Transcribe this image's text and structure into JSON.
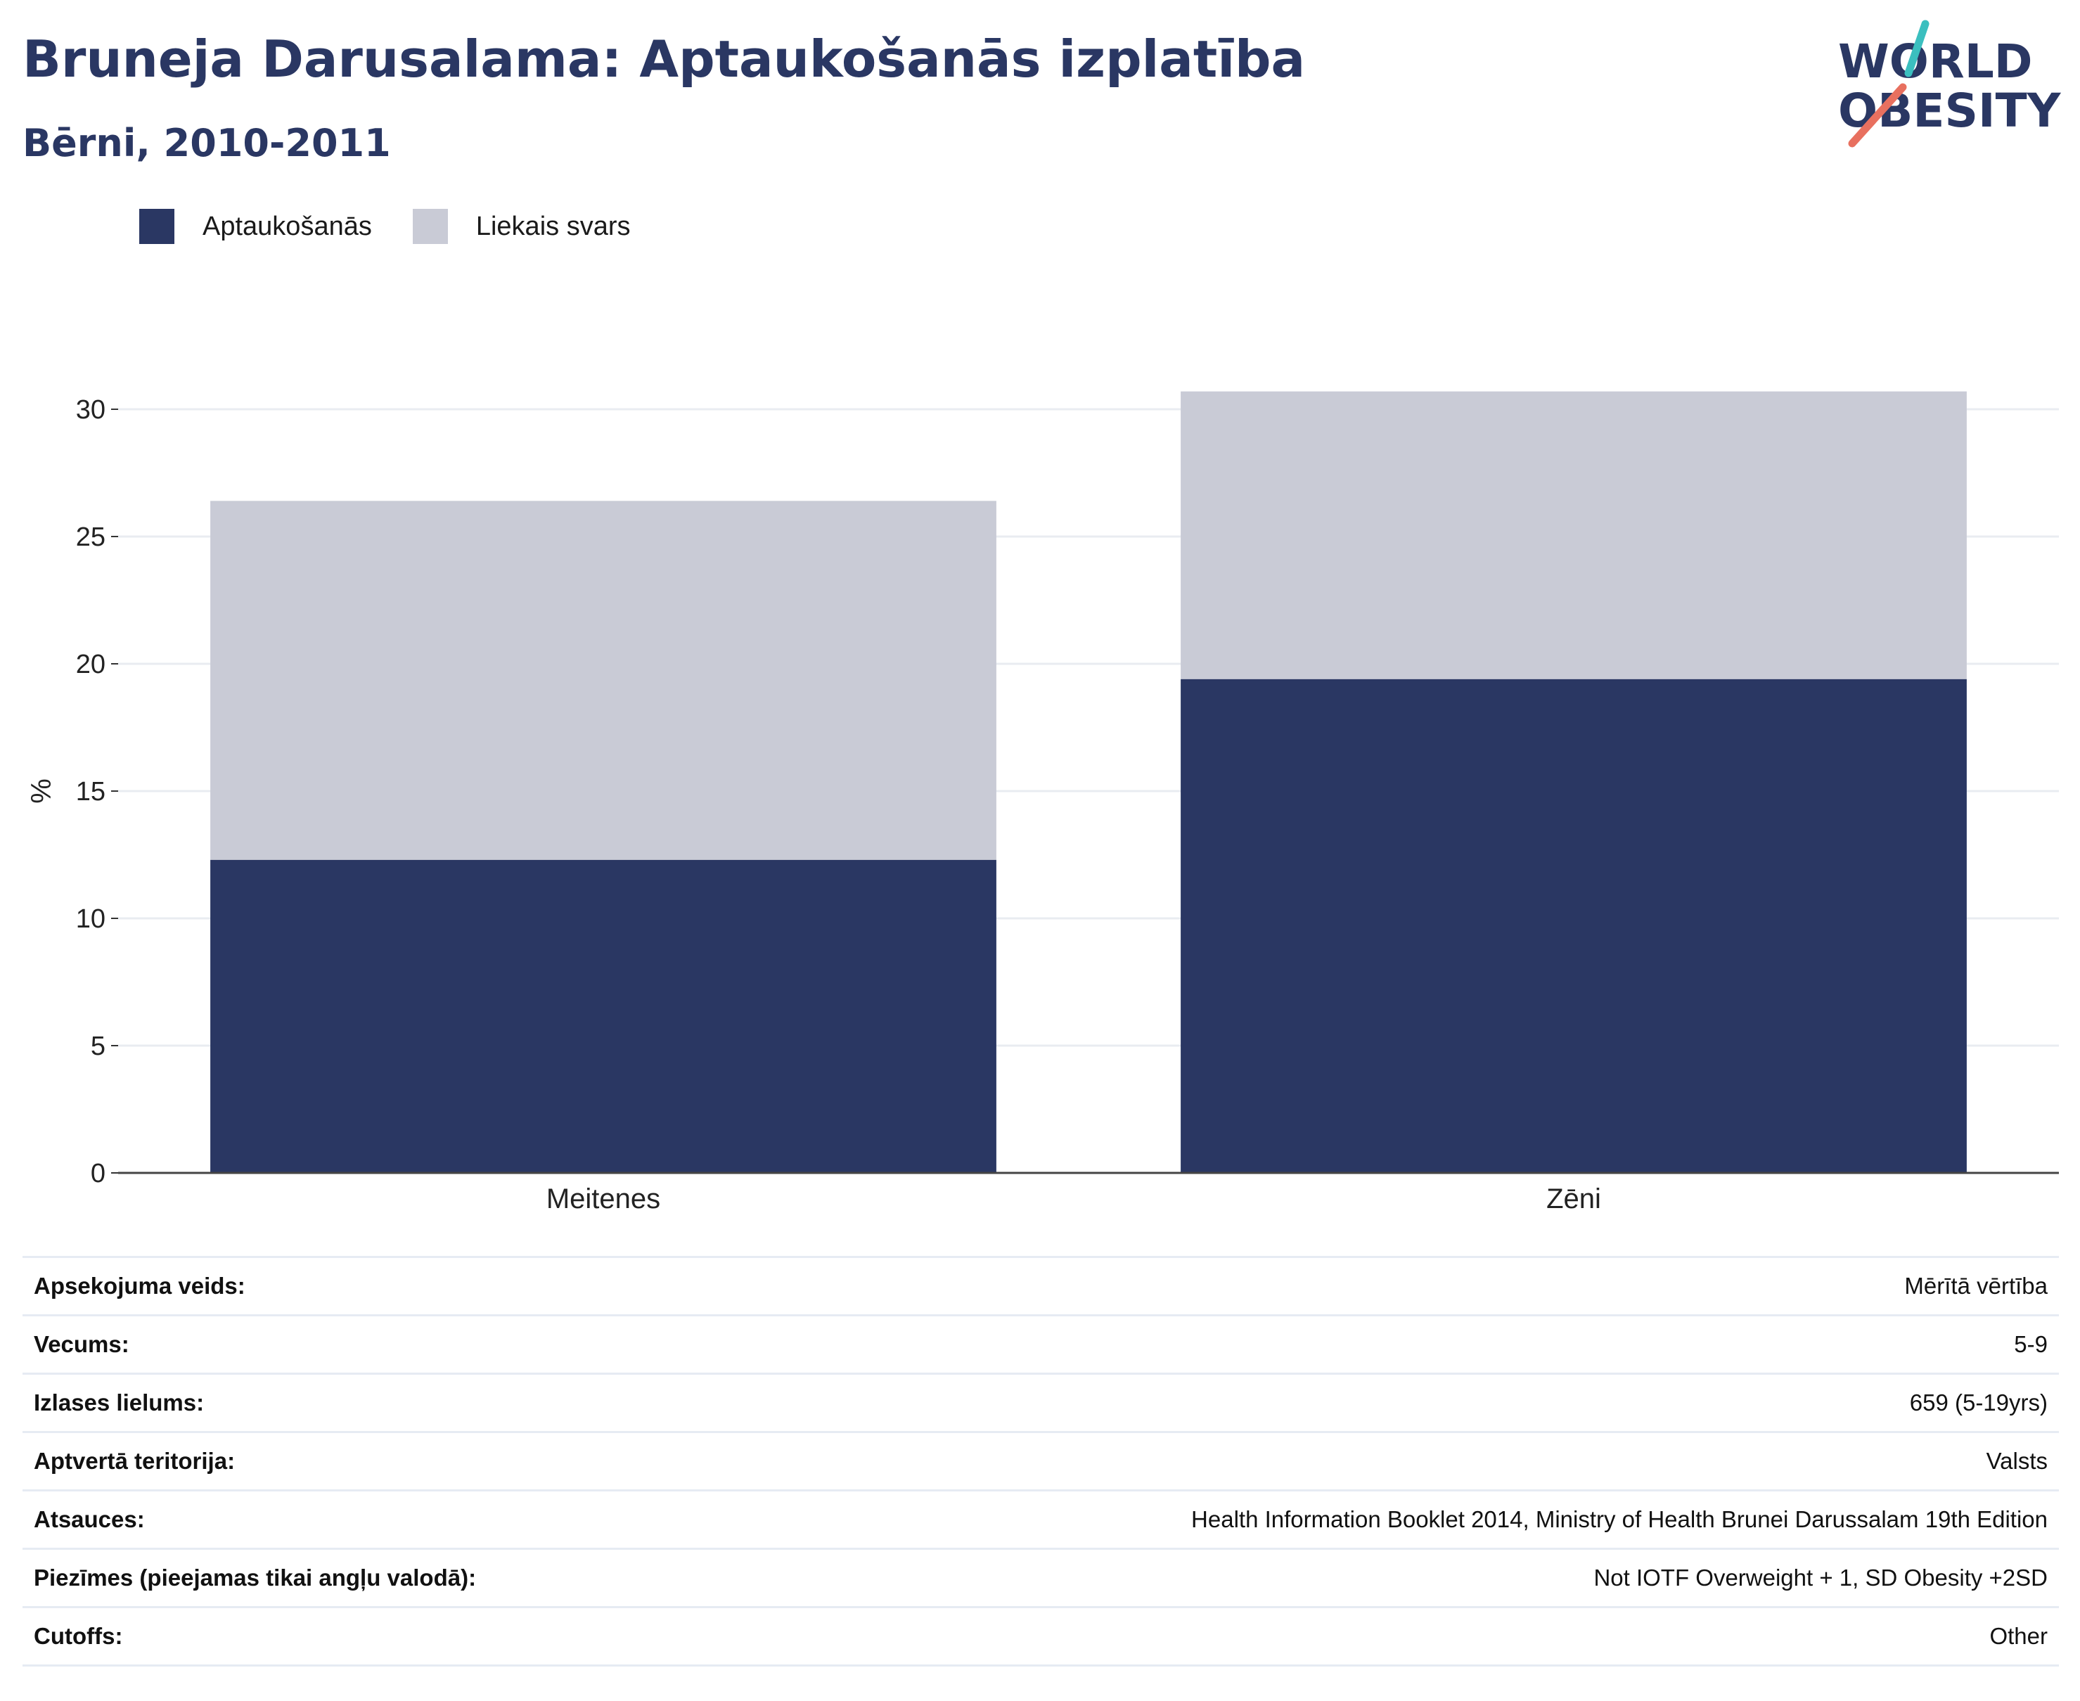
{
  "header": {
    "title": "Bruneja Darusalama: Aptaukošanās izplatība",
    "subtitle": "Bērni, 2010-2011"
  },
  "logo": {
    "line1": "WORLD",
    "line2": "OBESITY",
    "colors": {
      "text": "#2a3763",
      "slash_top": "#3bbfbf",
      "slash_bottom": "#e8705f"
    }
  },
  "legend": [
    {
      "label": "Aptaukošanās",
      "color": "#2a3763"
    },
    {
      "label": "Liekais svars",
      "color": "#c9cbd6"
    }
  ],
  "chart_data": {
    "type": "bar",
    "stacked": true,
    "categories": [
      "Meitenes",
      "Zēni"
    ],
    "series": [
      {
        "name": "Aptaukošanās",
        "values": [
          12.3,
          19.4
        ],
        "color": "#2a3763"
      },
      {
        "name": "Liekais svars",
        "values": [
          14.1,
          11.3
        ],
        "color": "#c9cbd6"
      }
    ],
    "ylabel": "%",
    "ylim": [
      0,
      30
    ],
    "yticks": [
      0,
      5,
      10,
      15,
      20,
      25,
      30
    ],
    "grid": true,
    "legend_position": "top-left"
  },
  "info": [
    {
      "key": "Apsekojuma veids:",
      "value": "Mērītā vērtība"
    },
    {
      "key": "Vecums:",
      "value": "5-9"
    },
    {
      "key": "Izlases lielums:",
      "value": "659 (5-19yrs)"
    },
    {
      "key": "Aptvertā teritorija:",
      "value": "Valsts"
    },
    {
      "key": "Atsauces:",
      "value": "Health Information Booklet 2014, Ministry of Health Brunei Darussalam 19th Edition"
    },
    {
      "key": "Piezīmes (pieejamas tikai angļu valodā):",
      "value": "Not IOTF Overweight + 1, SD Obesity +2SD"
    },
    {
      "key": "Cutoffs:",
      "value": "Other"
    }
  ]
}
